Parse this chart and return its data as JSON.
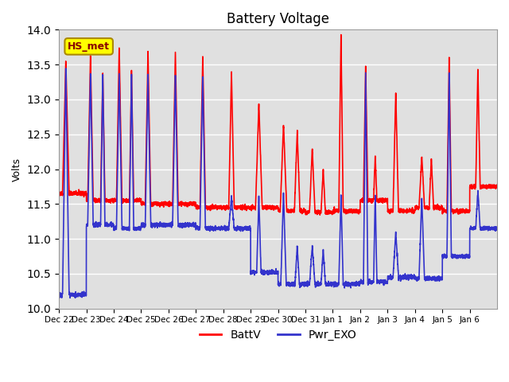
{
  "title": "Battery Voltage",
  "ylabel": "Volts",
  "ylim": [
    10.0,
    14.0
  ],
  "yticks": [
    10.0,
    10.5,
    11.0,
    11.5,
    12.0,
    12.5,
    13.0,
    13.5,
    14.0
  ],
  "xtick_labels": [
    "Dec 22",
    "Dec 23",
    "Dec 24",
    "Dec 25",
    "Dec 26",
    "Dec 27",
    "Dec 28",
    "Dec 29",
    "Dec 30",
    "Dec 31",
    "Jan 1",
    "Jan 2",
    "Jan 3",
    "Jan 4",
    "Jan 5",
    "Jan 6"
  ],
  "legend_label1": "BattV",
  "legend_label2": "Pwr_EXO",
  "color1": "#ff0000",
  "color2": "#3333cc",
  "annotation_text": "HS_met",
  "annotation_bg": "#ffff00",
  "annotation_border": "#aa8800",
  "background_color": "#e0e0e0",
  "linewidth": 1.2,
  "title_fontsize": 12,
  "axis_fontsize": 9,
  "legend_fontsize": 10,
  "n_days": 16
}
